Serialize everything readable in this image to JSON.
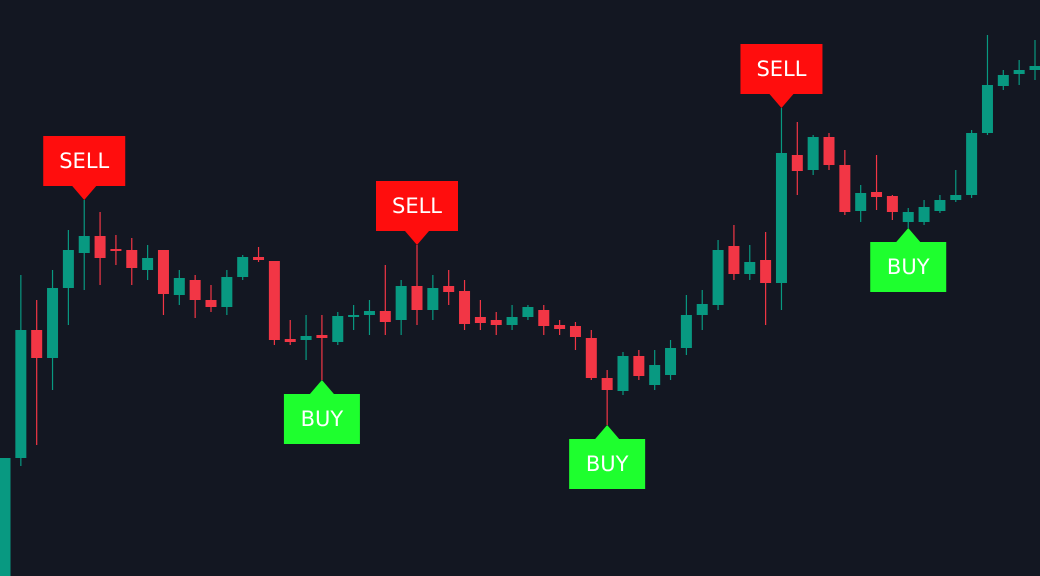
{
  "chart_data": {
    "type": "candlestick",
    "ylim": [
      0,
      576
    ],
    "up_color": "#089981",
    "down_color": "#f23645",
    "sell_color": "#ff0d0d",
    "buy_color": "#1eff2e",
    "background": "#131722",
    "open": [
      0,
      118,
      246,
      218,
      288,
      323,
      340,
      327,
      326,
      306,
      326,
      281,
      296,
      276,
      269,
      299,
      319,
      315,
      237,
      236,
      241,
      234,
      259,
      261,
      265,
      256,
      290,
      266,
      290,
      285,
      259,
      256,
      251,
      259,
      266,
      251,
      250,
      238,
      198,
      185,
      220,
      191,
      201,
      228,
      261,
      271,
      330,
      302,
      316,
      293,
      421,
      406,
      439,
      411,
      365,
      384,
      380,
      354,
      354,
      365,
      376,
      381,
      443,
      490,
      502,
      506
    ],
    "high": [
      118,
      301,
      276,
      306,
      346,
      376,
      364,
      341,
      338,
      331,
      326,
      306,
      301,
      291,
      306,
      321,
      329,
      315,
      256,
      261,
      261,
      264,
      271,
      276,
      311,
      296,
      331,
      301,
      306,
      296,
      276,
      264,
      271,
      271,
      271,
      256,
      254,
      246,
      206,
      224,
      226,
      226,
      236,
      281,
      286,
      336,
      351,
      331,
      344,
      468,
      454,
      441,
      443,
      426,
      391,
      421,
      381,
      368,
      376,
      381,
      406,
      446,
      541,
      506,
      516,
      536
    ],
    "low": [
      0,
      110,
      131,
      186,
      251,
      286,
      291,
      311,
      291,
      296,
      261,
      271,
      258,
      264,
      261,
      296,
      314,
      231,
      231,
      216,
      196,
      231,
      246,
      241,
      241,
      241,
      251,
      256,
      271,
      246,
      246,
      241,
      246,
      256,
      241,
      241,
      226,
      196,
      151,
      181,
      196,
      186,
      196,
      221,
      246,
      266,
      296,
      296,
      251,
      266,
      381,
      401,
      406,
      361,
      354,
      366,
      356,
      348,
      351,
      363,
      374,
      378,
      441,
      486,
      491,
      496
    ],
    "close": [
      118,
      246,
      218,
      288,
      326,
      340,
      318,
      325,
      308,
      318,
      282,
      298,
      276,
      269,
      299,
      319,
      316,
      236,
      234,
      240,
      238,
      260,
      261,
      265,
      254,
      290,
      266,
      288,
      284,
      252,
      253,
      251,
      259,
      269,
      250,
      247,
      239,
      198,
      186,
      220,
      200,
      211,
      228,
      261,
      272,
      326,
      302,
      314,
      293,
      423,
      405,
      439,
      411,
      364,
      383,
      379,
      364,
      364,
      369,
      376,
      381,
      443,
      491,
      501,
      506,
      510
    ],
    "signals": [
      null,
      null,
      null,
      null,
      null,
      "SELL",
      null,
      null,
      null,
      null,
      null,
      null,
      null,
      null,
      null,
      null,
      null,
      null,
      null,
      null,
      "BUY",
      null,
      null,
      null,
      null,
      null,
      "SELL",
      null,
      null,
      null,
      null,
      null,
      null,
      null,
      null,
      null,
      null,
      null,
      "BUY",
      null,
      null,
      null,
      null,
      null,
      null,
      null,
      null,
      null,
      null,
      "SELL",
      null,
      null,
      null,
      null,
      null,
      null,
      null,
      "BUY",
      null,
      null,
      null,
      null,
      null,
      null,
      null,
      null
    ]
  }
}
